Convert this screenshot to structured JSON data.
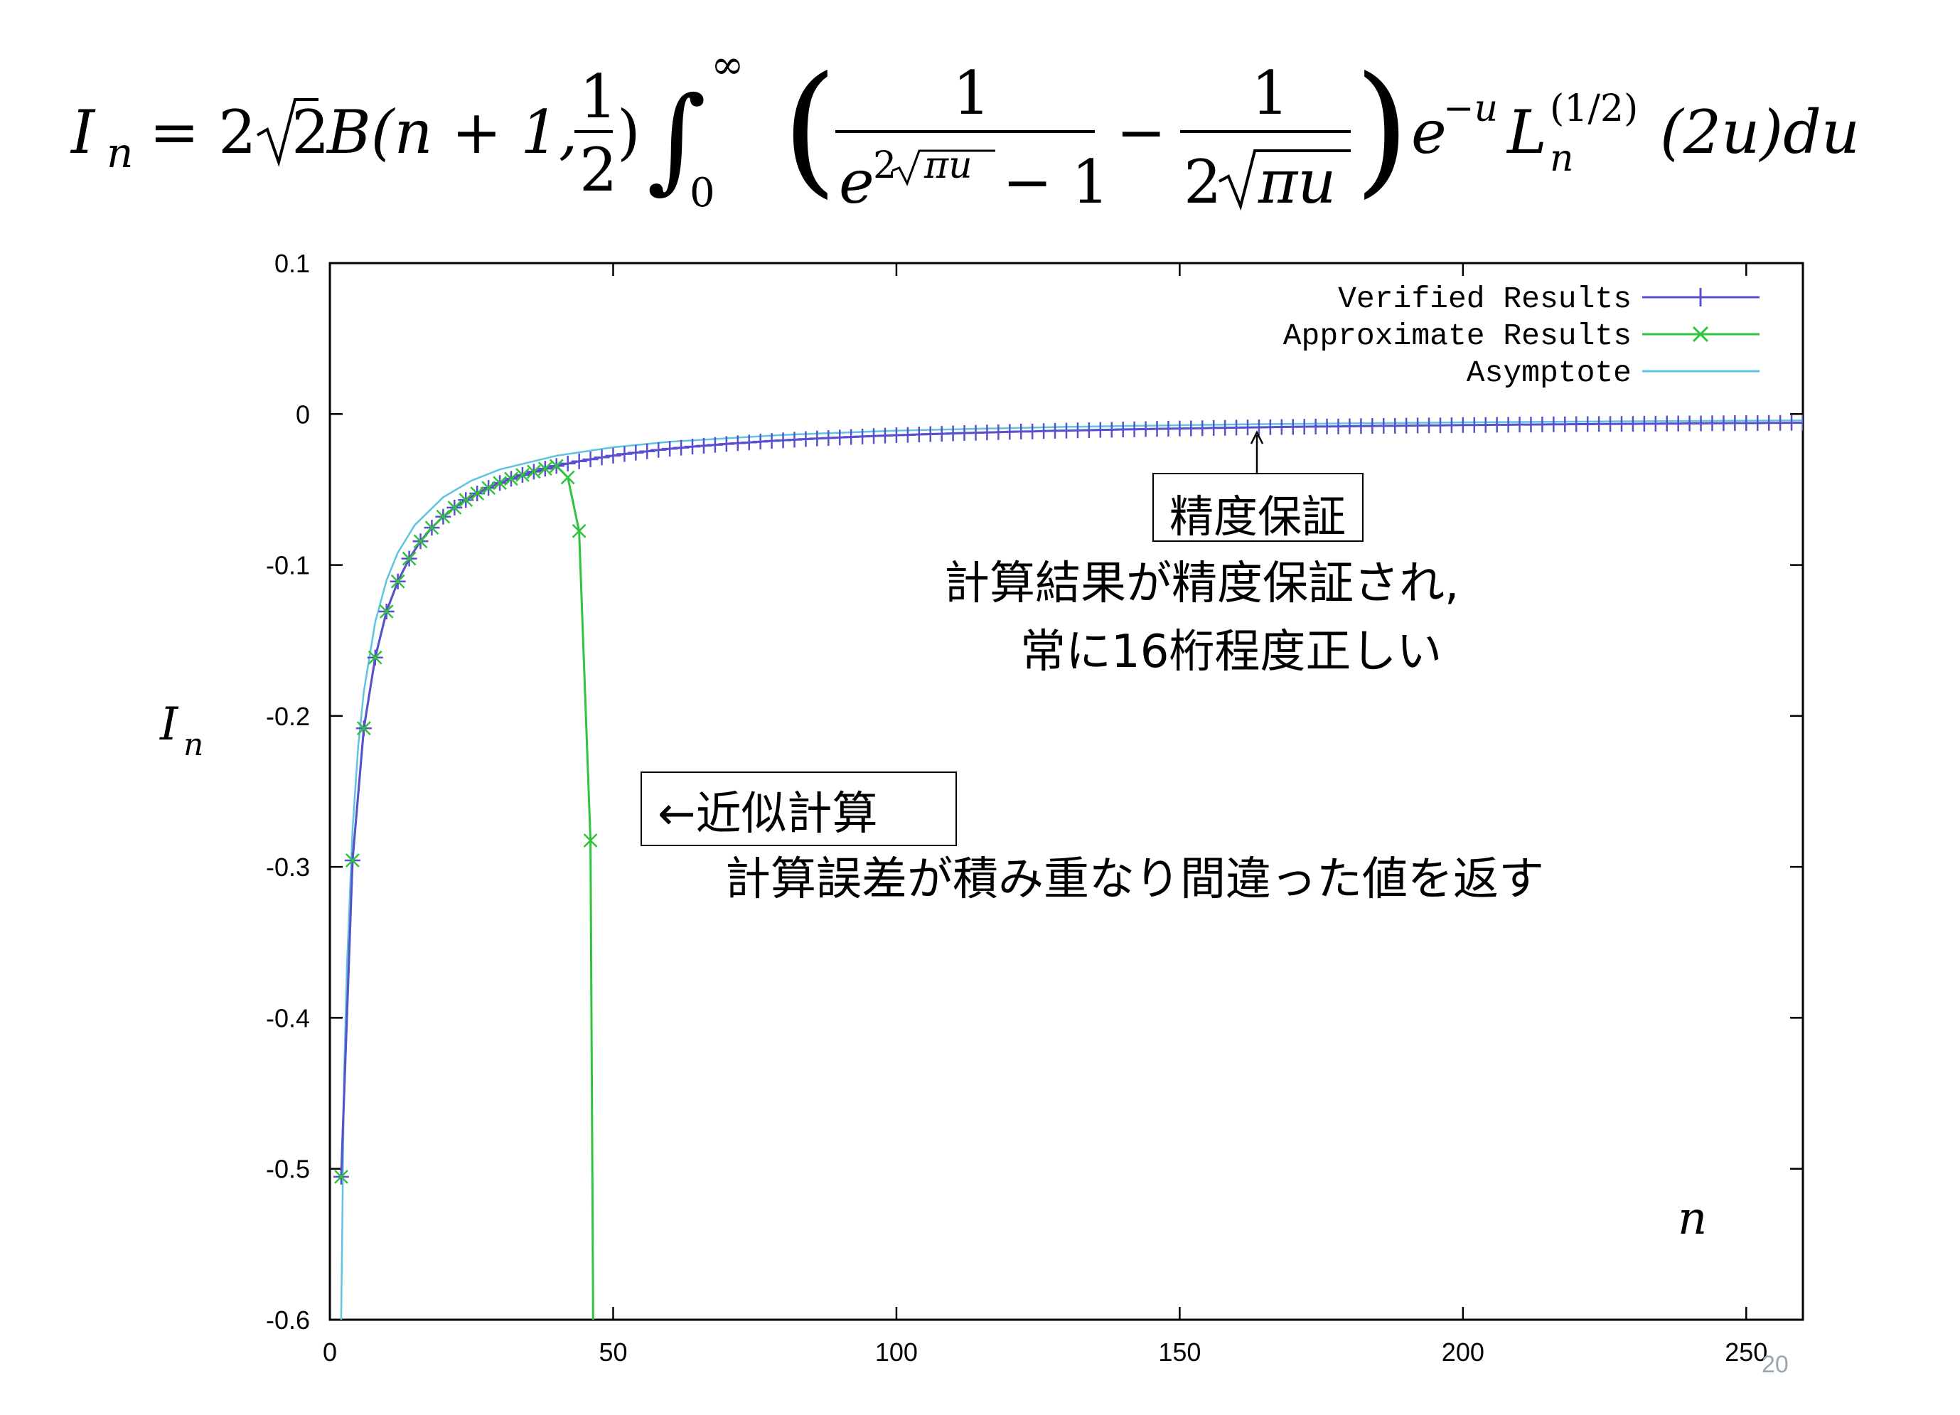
{
  "formula": {
    "lhs": "I",
    "lhs_sub": "n",
    "eq_prefix": "= 2",
    "sqrt_arg": "2",
    "beta": "B(n + 1,",
    "half_num": "1",
    "half_den": "2",
    "close_paren": ")",
    "int_upper": "∞",
    "int_lower": "0",
    "frac1_num": "1",
    "frac1_den_e": "e",
    "frac1_den_exp": "2",
    "frac1_den_sqrt": "πu",
    "frac1_den_tail": "− 1",
    "minus": "−",
    "frac2_num": "1",
    "frac2_den_pre": "2",
    "frac2_den_sqrt": "πu",
    "exp_base": "e",
    "exp_power": "−u",
    "laguerre": "L",
    "laguerre_sup": "(1/2)",
    "laguerre_sub": "n",
    "tail": "(2u)du"
  },
  "chart_data": {
    "type": "line",
    "xlabel": "n",
    "ylabel": "I",
    "ylabel_sub": "n",
    "xlim": [
      0,
      260
    ],
    "ylim": [
      -0.6,
      0.1
    ],
    "xticks": [
      0,
      50,
      100,
      150,
      200,
      250
    ],
    "xtick_labels": [
      "0",
      "50",
      "100",
      "150",
      "200",
      "250"
    ],
    "yticks": [
      0.1,
      0,
      -0.1,
      -0.2,
      -0.3,
      -0.4,
      -0.5,
      -0.6
    ],
    "ytick_labels": [
      "0.1",
      "0",
      "-0.1",
      "-0.2",
      "-0.3",
      "-0.4",
      "-0.5",
      "-0.6"
    ],
    "legend_position": "top-right",
    "grid": false,
    "series": [
      {
        "name": "Verified Results",
        "color": "#5a4fcf",
        "marker": "plus",
        "x": [
          2,
          4,
          6,
          8,
          10,
          12,
          14,
          16,
          18,
          20,
          22,
          24,
          26,
          28,
          30,
          32,
          34,
          36,
          38,
          40,
          42,
          44,
          46,
          48,
          50,
          52,
          54,
          56,
          58,
          60,
          62,
          64,
          66,
          68,
          70,
          72,
          74,
          76,
          78,
          80,
          82,
          84,
          86,
          88,
          90,
          92,
          94,
          96,
          98,
          100,
          102,
          104,
          106,
          108,
          110,
          112,
          114,
          116,
          118,
          120,
          122,
          124,
          126,
          128,
          130,
          132,
          134,
          136,
          138,
          140,
          142,
          144,
          146,
          148,
          150,
          152,
          154,
          156,
          158,
          160,
          162,
          164,
          166,
          168,
          170,
          172,
          174,
          176,
          178,
          180,
          182,
          184,
          186,
          188,
          190,
          192,
          194,
          196,
          198,
          200,
          202,
          204,
          206,
          208,
          210,
          212,
          214,
          216,
          218,
          220,
          222,
          224,
          226,
          228,
          230,
          232,
          234,
          236,
          238,
          240,
          242,
          244,
          246,
          248,
          250,
          252,
          254,
          256,
          258,
          260
        ],
        "y": [
          -0.5053,
          -0.2957,
          -0.2082,
          -0.1613,
          -0.1308,
          -0.1109,
          -0.0958,
          -0.0843,
          -0.0753,
          -0.068,
          -0.062,
          -0.0569,
          -0.0526,
          -0.0489,
          -0.0457,
          -0.0429,
          -0.0404,
          -0.0382,
          -0.0362,
          -0.0344,
          -0.0328,
          -0.0313,
          -0.03,
          -0.0287,
          -0.0276,
          -0.0265,
          -0.0256,
          -0.0247,
          -0.0238,
          -0.023,
          -0.0223,
          -0.0216,
          -0.021,
          -0.0204,
          -0.0198,
          -0.0193,
          -0.0188,
          -0.0183,
          -0.0178,
          -0.0174,
          -0.017,
          -0.0166,
          -0.0162,
          -0.0159,
          -0.0155,
          -0.0152,
          -0.0149,
          -0.0146,
          -0.0143,
          -0.014,
          -0.0138,
          -0.0135,
          -0.0133,
          -0.0131,
          -0.0128,
          -0.0126,
          -0.0124,
          -0.0122,
          -0.012,
          -0.0118,
          -0.0116,
          -0.0115,
          -0.0113,
          -0.0111,
          -0.011,
          -0.0108,
          -0.0107,
          -0.0105,
          -0.0104,
          -0.0102,
          -0.0101,
          -0.01,
          -0.0098,
          -0.0097,
          -0.0096,
          -0.0095,
          -0.0094,
          -0.0092,
          -0.0091,
          -0.009,
          -0.0089,
          -0.0088,
          -0.0087,
          -0.0086,
          -0.0085,
          -0.0084,
          -0.0083,
          -0.0082,
          -0.0082,
          -0.0081,
          -0.008,
          -0.0079,
          -0.0078,
          -0.0078,
          -0.0077,
          -0.0076,
          -0.0075,
          -0.0075,
          -0.0074,
          -0.0073,
          -0.0073,
          -0.0072,
          -0.0071,
          -0.0071,
          -0.007,
          -0.007,
          -0.0069,
          -0.0068,
          -0.0068,
          -0.0067,
          -0.0067,
          -0.0066,
          -0.0066,
          -0.0065,
          -0.0065,
          -0.0064,
          -0.0064,
          -0.0063,
          -0.0063,
          -0.0062,
          -0.0062,
          -0.0061,
          -0.0061,
          -0.006,
          -0.006,
          -0.006,
          -0.0059,
          -0.0059,
          -0.0058,
          -0.0058
        ]
      },
      {
        "name": "Approximate Results",
        "color": "#2ec43c",
        "marker": "cross",
        "x": [
          2,
          4,
          6,
          8,
          10,
          12,
          14,
          16,
          18,
          20,
          22,
          24,
          26,
          28,
          30,
          32,
          34,
          36,
          38,
          40,
          42,
          44,
          46,
          46.5
        ],
        "y": [
          -0.5053,
          -0.2957,
          -0.2082,
          -0.1613,
          -0.1308,
          -0.1109,
          -0.0958,
          -0.0843,
          -0.0753,
          -0.068,
          -0.062,
          -0.0569,
          -0.0526,
          -0.0489,
          -0.0457,
          -0.0429,
          -0.0404,
          -0.0382,
          -0.0362,
          -0.0344,
          -0.042,
          -0.0775,
          -0.2825,
          -0.62
        ]
      },
      {
        "name": "Asymptote",
        "color": "#5fc4e0",
        "marker": "none",
        "x": [
          2,
          2.5,
          3,
          4,
          5,
          6,
          8,
          10,
          12,
          15,
          20,
          25,
          30,
          40,
          50,
          60,
          80,
          100,
          130,
          160,
          200,
          230,
          260
        ],
        "y": [
          -0.6,
          -0.44,
          -0.367,
          -0.2755,
          -0.2204,
          -0.1837,
          -0.1378,
          -0.1102,
          -0.0918,
          -0.0735,
          -0.0551,
          -0.0441,
          -0.0367,
          -0.0276,
          -0.022,
          -0.0184,
          -0.0138,
          -0.011,
          -0.0085,
          -0.0069,
          -0.0055,
          -0.0048,
          -0.0042
        ]
      }
    ]
  },
  "annotations": {
    "verified_box": "精度保証",
    "verified_box_color": "#e02020",
    "verified_text1": "計算結果が精度保証され,",
    "verified_text2": "常に16桁程度正しい",
    "approx_box": "←近似計算",
    "approx_text": "計算誤差が積み重なり間違った値を返す"
  },
  "page_number": "20"
}
